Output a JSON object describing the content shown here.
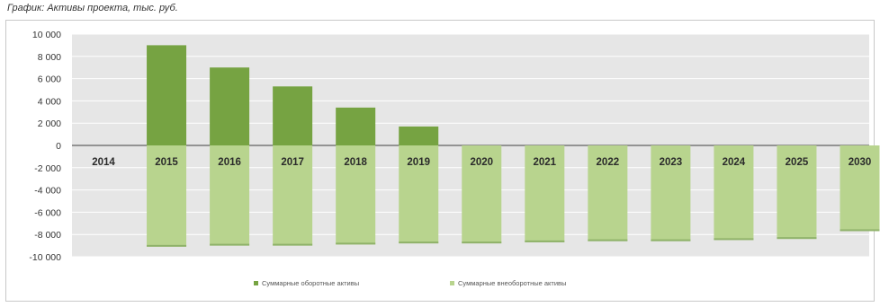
{
  "title": "График: Активы проекта, тыс. руб.",
  "colors": {
    "current_assets": "#76a342",
    "noncurrent_assets": "#b8d48e",
    "plot_background": "#e6e6e6",
    "gridline": "#ffffff",
    "zero_line": "#404040"
  },
  "chart_data": {
    "type": "bar",
    "stacked": true,
    "title": "График: Активы проекта, тыс. руб.",
    "xlabel": "",
    "ylabel": "",
    "categories": [
      "2014",
      "2015",
      "2016",
      "2017",
      "2018",
      "2019",
      "2020",
      "2021",
      "2022",
      "2023",
      "2024",
      "2025",
      "2030"
    ],
    "series": [
      {
        "name": "Суммарные оборотные активы",
        "values": [
          0,
          9000,
          7000,
          5300,
          3400,
          1700,
          0,
          0,
          0,
          0,
          0,
          0,
          0
        ]
      },
      {
        "name": "Суммарные внеоборотные активы",
        "values": [
          0,
          -9100,
          -9000,
          -9000,
          -8900,
          -8800,
          -8800,
          -8700,
          -8600,
          -8600,
          -8500,
          -8400,
          -7700
        ]
      }
    ],
    "yticks": [
      "10 000",
      "8 000",
      "6 000",
      "4 000",
      "2 000",
      "0",
      "-2 000",
      "-4 000",
      "-6 000",
      "-8 000",
      "-10 000"
    ],
    "ytick_values": [
      10000,
      8000,
      6000,
      4000,
      2000,
      0,
      -2000,
      -4000,
      -6000,
      -8000,
      -10000
    ],
    "ylim": [
      -10000,
      10000
    ],
    "grid": true,
    "legend": "bottom"
  }
}
